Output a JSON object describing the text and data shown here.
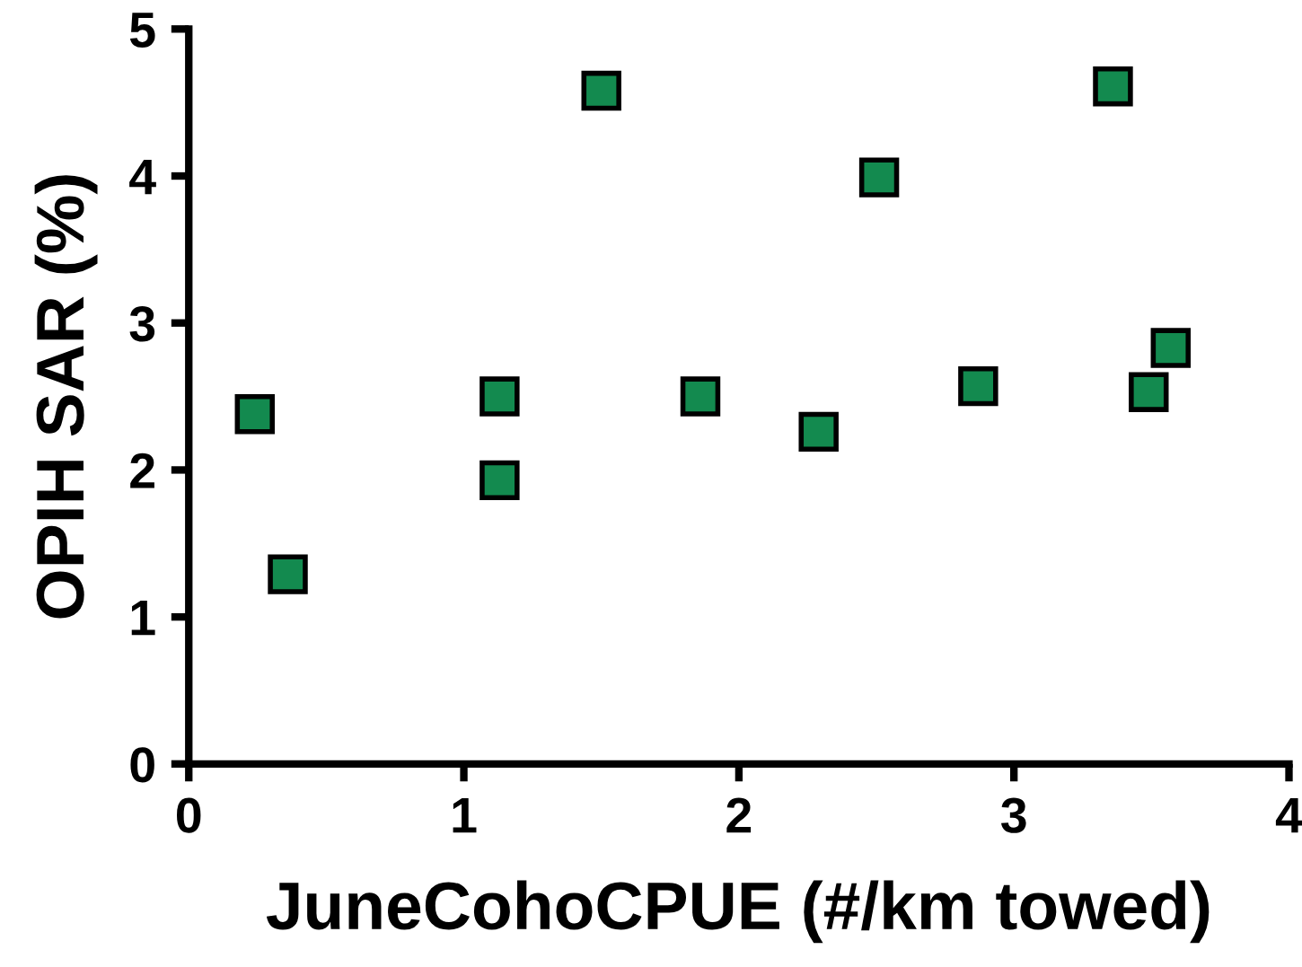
{
  "chart_data": {
    "type": "scatter",
    "xlabel": "JuneCohoCPUE (#/km towed)",
    "ylabel": "OPIH SAR (%)",
    "series": [
      {
        "color": "#138a4f",
        "x": [
          0.24,
          0.36,
          1.13,
          1.13,
          1.5,
          1.86,
          2.29,
          2.51,
          2.87,
          3.36,
          3.49,
          3.57
        ],
        "values": [
          2.38,
          1.29,
          2.5,
          1.93,
          4.58,
          2.5,
          2.26,
          3.99,
          2.57,
          4.61,
          2.53,
          2.83
        ]
      }
    ],
    "marker": "square",
    "xlim": [
      0,
      4
    ],
    "xticks": [
      0,
      1,
      2,
      3,
      4
    ],
    "ylim": [
      0,
      5
    ],
    "yticks": [
      0,
      1,
      2,
      3,
      4,
      5
    ],
    "grid": false,
    "legend": false
  }
}
